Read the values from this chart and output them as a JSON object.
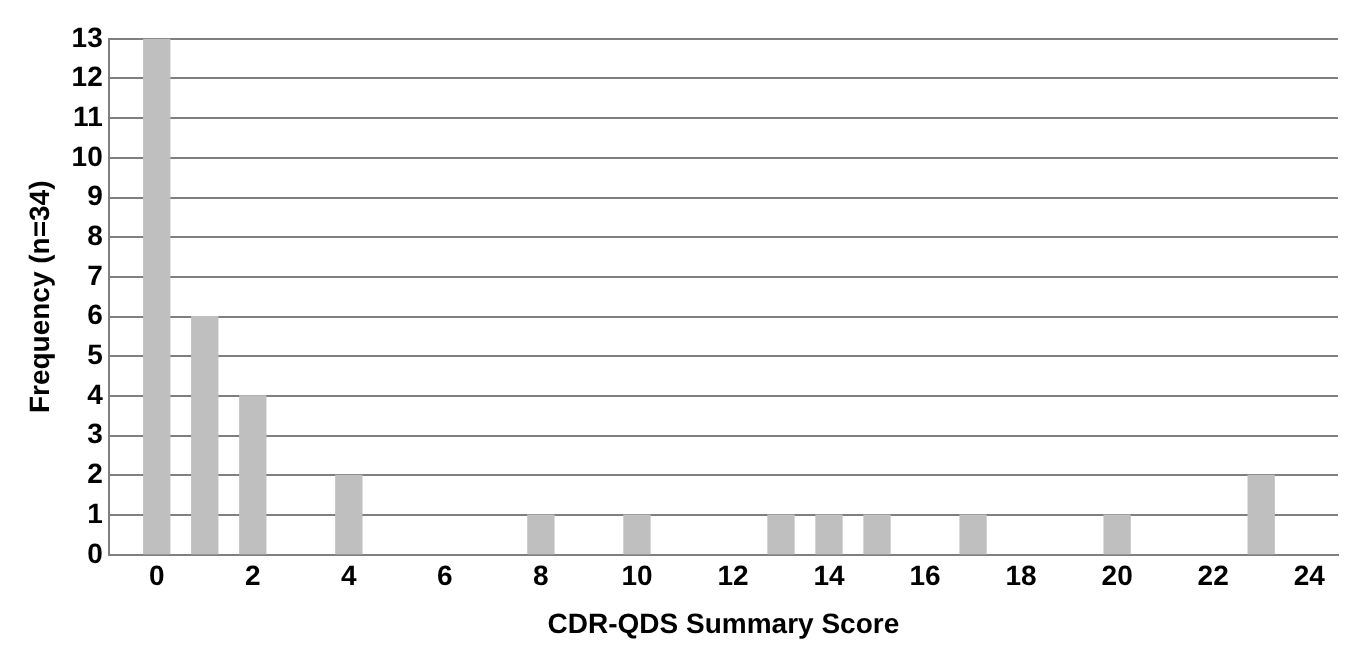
{
  "chart_data": {
    "type": "bar",
    "xlabel": "CDR-QDS Summary Score",
    "ylabel": "Frequency (n=34)",
    "x": [
      0,
      1,
      2,
      4,
      8,
      10,
      13,
      14,
      15,
      17,
      20,
      23
    ],
    "values": [
      13,
      6,
      4,
      2,
      1,
      1,
      1,
      1,
      1,
      1,
      1,
      2
    ],
    "color": "#bfbfbf",
    "xlim": [
      -1,
      24.6
    ],
    "xticks": [
      0,
      2,
      4,
      6,
      8,
      10,
      12,
      14,
      16,
      18,
      20,
      22,
      24
    ],
    "ylim": [
      0,
      13
    ],
    "yticks": [
      0,
      1,
      2,
      3,
      4,
      5,
      6,
      7,
      8,
      9,
      10,
      11,
      12,
      13
    ],
    "grid": "y",
    "legend": false
  }
}
